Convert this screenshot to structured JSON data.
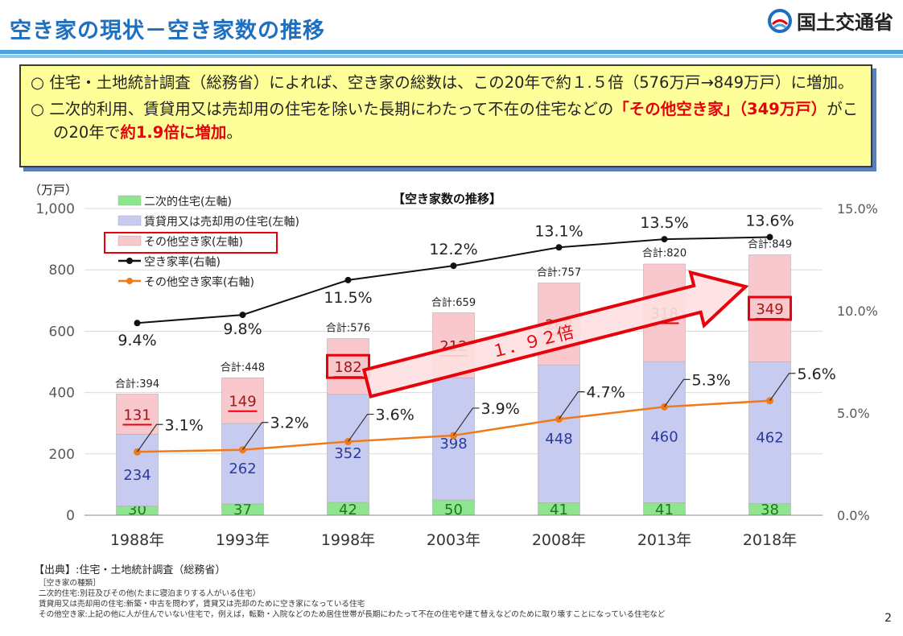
{
  "header": {
    "title": "空き家の現状－空き家数の推移",
    "ministry": "国土交通省"
  },
  "summary": {
    "line1": "○ 住宅・土地統計調査（総務省）によれば、空き家の総数は、この20年で約１.５倍（576万戸→849万戸）に増加。",
    "line2_a": "○ 二次的利用、賃貸用又は売却用の住宅を除いた長期にわたって不在の住宅などの",
    "line2_b": "「その他空き家」（349万戸）",
    "line2_c": "がこの20年で",
    "line2_d": "約1.9倍に増加",
    "line2_e": "。"
  },
  "chart_data": {
    "type": "bar",
    "title": "【空き家数の推移】",
    "ylabel": "（万戸）",
    "categories": [
      "1988年",
      "1993年",
      "1998年",
      "2003年",
      "2008年",
      "2013年",
      "2018年"
    ],
    "ylim": [
      0,
      1000
    ],
    "y_ticks": [
      "0",
      "200",
      "400",
      "600",
      "800",
      "1,000"
    ],
    "y2lim": [
      0,
      15
    ],
    "y2_ticks": [
      "0.0%",
      "5.0%",
      "10.0%",
      "15.0%"
    ],
    "series": [
      {
        "name": "二次的住宅(左軸)",
        "color": "#8fe58f",
        "values": [
          30,
          37,
          42,
          50,
          41,
          41,
          38
        ]
      },
      {
        "name": "賃貸用又は売却用の住宅(左軸)",
        "color": "#c8cbf0",
        "values": [
          234,
          262,
          352,
          398,
          448,
          460,
          462
        ]
      },
      {
        "name": "その他空き家(左軸)",
        "color": "#f8c8cc",
        "values": [
          131,
          149,
          182,
          212,
          268,
          318,
          349
        ]
      }
    ],
    "totals": [
      394,
      448,
      576,
      659,
      757,
      820,
      849
    ],
    "total_prefix": "合計:",
    "lines": [
      {
        "name": "空き家率(右軸)",
        "color": "#111111",
        "values": [
          9.4,
          9.8,
          11.5,
          12.2,
          13.1,
          13.5,
          13.6
        ],
        "labels": [
          "9.4%",
          "9.8%",
          "11.5%",
          "12.2%",
          "13.1%",
          "13.5%",
          "13.6%"
        ]
      },
      {
        "name": "その他空き家率(右軸)",
        "color": "#f07a18",
        "values": [
          3.1,
          3.2,
          3.6,
          3.9,
          4.7,
          5.3,
          5.6
        ],
        "labels": [
          "3.1%",
          "3.2%",
          "3.6%",
          "3.9%",
          "4.7%",
          "5.3%",
          "5.6%"
        ]
      }
    ],
    "annotation": "１．９２倍",
    "grid": true,
    "legend_position": "top-left"
  },
  "footer": {
    "source": "【出典】:住宅・土地統計調査（総務省）",
    "notes_title": "［空き家の種類］",
    "note1": "二次的住宅:別荘及びその他(たまに寝泊まりする人がいる住宅）",
    "note2": "賃貸用又は売却用の住宅:新築・中古を問わず，賃貸又は売却のために空き家になっている住宅",
    "note3": "その他空き家:上記の他に人が住んでいない住宅で，例えば，転勤・入院などのため居住世帯が長期にわたって不在の住宅や建て替えなどのために取り壊すことになっている住宅など",
    "page": "2"
  }
}
